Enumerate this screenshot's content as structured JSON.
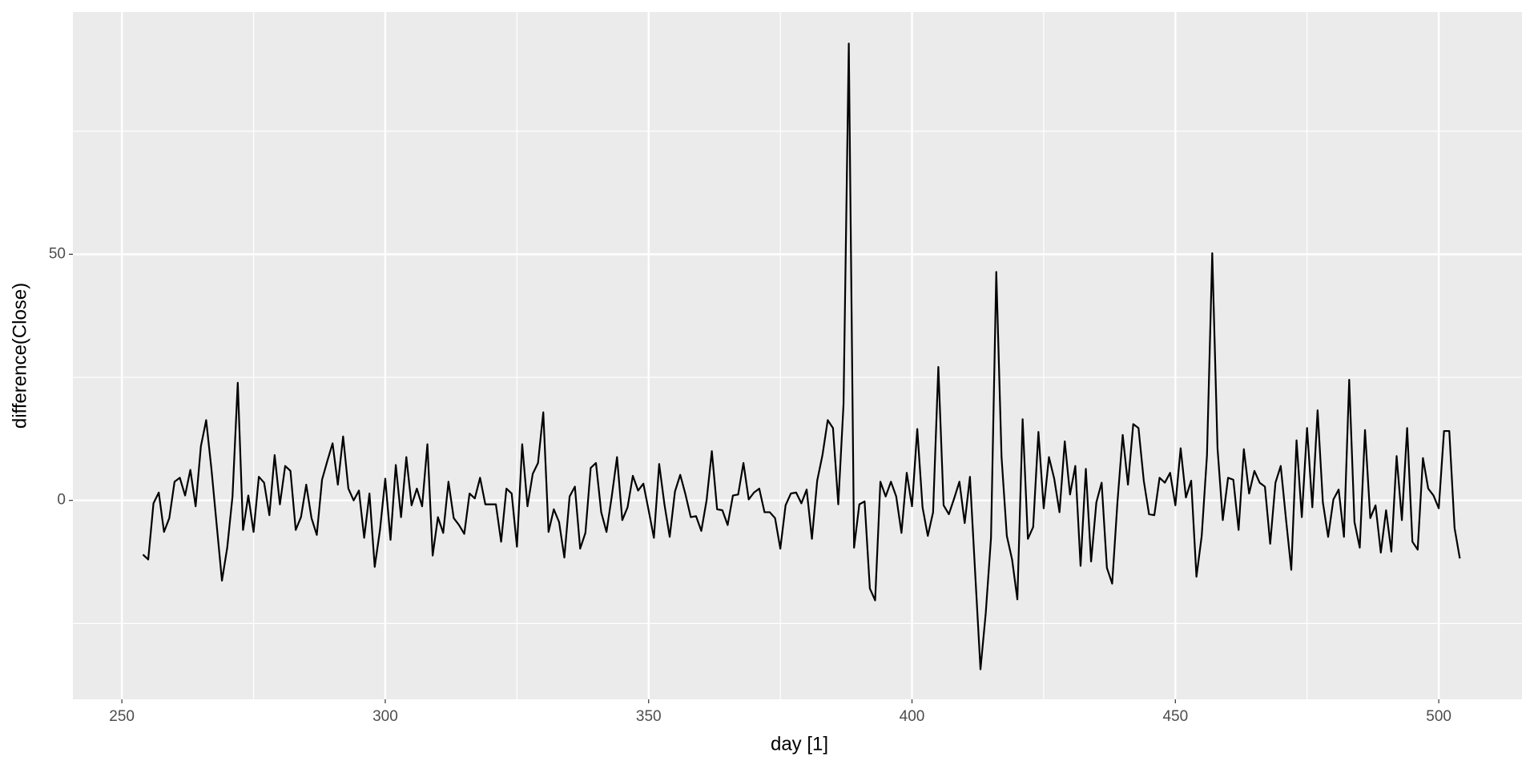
{
  "chart_data": {
    "type": "line",
    "x_label": "day [1]",
    "y_label": "difference(Close)",
    "xlim": [
      240.7,
      515.8
    ],
    "ylim": [
      -40.4,
      99.2
    ],
    "xticks": [
      250,
      300,
      350,
      400,
      450,
      500
    ],
    "yticks": [
      0,
      50
    ],
    "grid": true,
    "panel_color": "#ebebeb",
    "series": [
      {
        "color": "#000000",
        "x": [
          254,
          255,
          256,
          257,
          258,
          259,
          260,
          261,
          262,
          263,
          264,
          265,
          266,
          267,
          268,
          269,
          270,
          271,
          272,
          273,
          274,
          275,
          276,
          277,
          278,
          279,
          280,
          281,
          282,
          283,
          284,
          285,
          286,
          287,
          288,
          289,
          290,
          291,
          292,
          293,
          294,
          295,
          296,
          297,
          298,
          299,
          300,
          301,
          302,
          303,
          304,
          305,
          306,
          307,
          308,
          309,
          310,
          311,
          312,
          313,
          314,
          315,
          316,
          317,
          318,
          319,
          320,
          321,
          322,
          323,
          324,
          325,
          326,
          327,
          328,
          329,
          330,
          331,
          332,
          333,
          334,
          335,
          336,
          337,
          338,
          339,
          340,
          341,
          342,
          343,
          344,
          345,
          346,
          347,
          348,
          349,
          350,
          351,
          352,
          353,
          354,
          355,
          356,
          357,
          358,
          359,
          360,
          361,
          362,
          363,
          364,
          365,
          366,
          367,
          368,
          369,
          370,
          371,
          372,
          373,
          374,
          375,
          376,
          377,
          378,
          379,
          380,
          381,
          382,
          383,
          384,
          385,
          386,
          387,
          388,
          389,
          390,
          391,
          392,
          393,
          394,
          395,
          396,
          397,
          398,
          399,
          400,
          401,
          402,
          403,
          404,
          405,
          406,
          407,
          408,
          409,
          410,
          411,
          412,
          413,
          414,
          415,
          416,
          417,
          418,
          419,
          420,
          421,
          422,
          423,
          424,
          425,
          426,
          427,
          428,
          429,
          430,
          431,
          432,
          433,
          434,
          435,
          436,
          437,
          438,
          439,
          440,
          441,
          442,
          443,
          444,
          445,
          446,
          447,
          448,
          449,
          450,
          451,
          452,
          453,
          454,
          455,
          456,
          457,
          458,
          459,
          460,
          461,
          462,
          463,
          464,
          465,
          466,
          467,
          468,
          469,
          470,
          471,
          472,
          473,
          474,
          475,
          476,
          477,
          478,
          479,
          480,
          481,
          482,
          483,
          484,
          485,
          486,
          487,
          488,
          489,
          490,
          491,
          492,
          493,
          494,
          495,
          496,
          497,
          498,
          499,
          500,
          501,
          502,
          503,
          504
        ],
        "values": [
          -11,
          -12,
          -0.6,
          1.6,
          -6.4,
          -3.6,
          3.8,
          4.6,
          1,
          6.2,
          -1.2,
          11,
          16.3,
          6.4,
          -5,
          -16.3,
          -9.6,
          0.8,
          23.9,
          -6,
          1,
          -6.4,
          4.8,
          3.6,
          -3,
          9.2,
          -0.8,
          7,
          6,
          -6,
          -3.4,
          3.2,
          -3.6,
          -7,
          4.2,
          8,
          11.6,
          3.2,
          13,
          2.4,
          0,
          2,
          -7.6,
          1.4,
          -13.5,
          -6,
          4.4,
          -8,
          7.2,
          -3.4,
          8.8,
          -1,
          2.4,
          -1.2,
          11.4,
          -11.2,
          -3.4,
          -6.6,
          3.8,
          -3.6,
          -5,
          -6.8,
          1.4,
          0.4,
          4.6,
          -0.8,
          -0.8,
          -0.8,
          -8.4,
          2.4,
          1.4,
          -9.4,
          11.4,
          -1.2,
          5.4,
          7.6,
          17.9,
          -6.4,
          -1.8,
          -4.4,
          -11.6,
          0.8,
          2.8,
          -9.8,
          -6.6,
          6.6,
          7.6,
          -2.4,
          -6.4,
          0.8,
          8.8,
          -4,
          -1.4,
          5,
          2,
          3.4,
          -2,
          -7.6,
          7.4,
          -0.8,
          -7.4,
          1.8,
          5.2,
          1.2,
          -3.4,
          -3.2,
          -6.2,
          0,
          10,
          -1.8,
          -2,
          -5,
          1,
          1.2,
          7.6,
          0.2,
          1.6,
          2.4,
          -2.4,
          -2.4,
          -3.6,
          -9.8,
          -1,
          1.4,
          1.6,
          -0.6,
          2.2,
          -7.8,
          4,
          9.2,
          16.3,
          14.7,
          -0.8,
          19.5,
          92.8,
          -9.6,
          -0.8,
          -0.2,
          -17.9,
          -20.3,
          3.8,
          0.8,
          3.8,
          0.8,
          -6.6,
          5.6,
          -1.2,
          14.5,
          -1.4,
          -7.2,
          -2.4,
          27.1,
          -1,
          -2.8,
          0.4,
          3.8,
          -4.6,
          4.8,
          -14.9,
          -34.3,
          -22.9,
          -7.6,
          46.4,
          8.8,
          -7.2,
          -12,
          -20.1,
          16.5,
          -7.8,
          -5.4,
          13.9,
          -1.6,
          8.8,
          4.4,
          -2.4,
          12,
          1.2,
          7,
          -13.3,
          6.4,
          -12.4,
          -0.4,
          3.6,
          -13.7,
          -16.9,
          -0.4,
          13.3,
          3.2,
          15.5,
          14.7,
          4,
          -2.8,
          -3,
          4.6,
          3.6,
          5.6,
          -1,
          10.6,
          0.6,
          4,
          -15.5,
          -7.2,
          9.2,
          50.2,
          10.6,
          -4,
          4.6,
          4.2,
          -6,
          10.4,
          1.4,
          6,
          3.6,
          2.8,
          -8.8,
          3.6,
          7,
          -3.8,
          -14.1,
          12.2,
          -3.4,
          14.7,
          -1.4,
          18.3,
          -0.4,
          -7.4,
          0.2,
          2.2,
          -7.4,
          24.5,
          -4.4,
          -9.6,
          14.3,
          -3.6,
          -1,
          -10.6,
          -2,
          -10.4,
          9,
          -4,
          14.7,
          -8.4,
          -10,
          8.6,
          2.4,
          1,
          -1.6,
          14.1,
          14.1,
          -5.6,
          -11.8
        ]
      }
    ]
  }
}
